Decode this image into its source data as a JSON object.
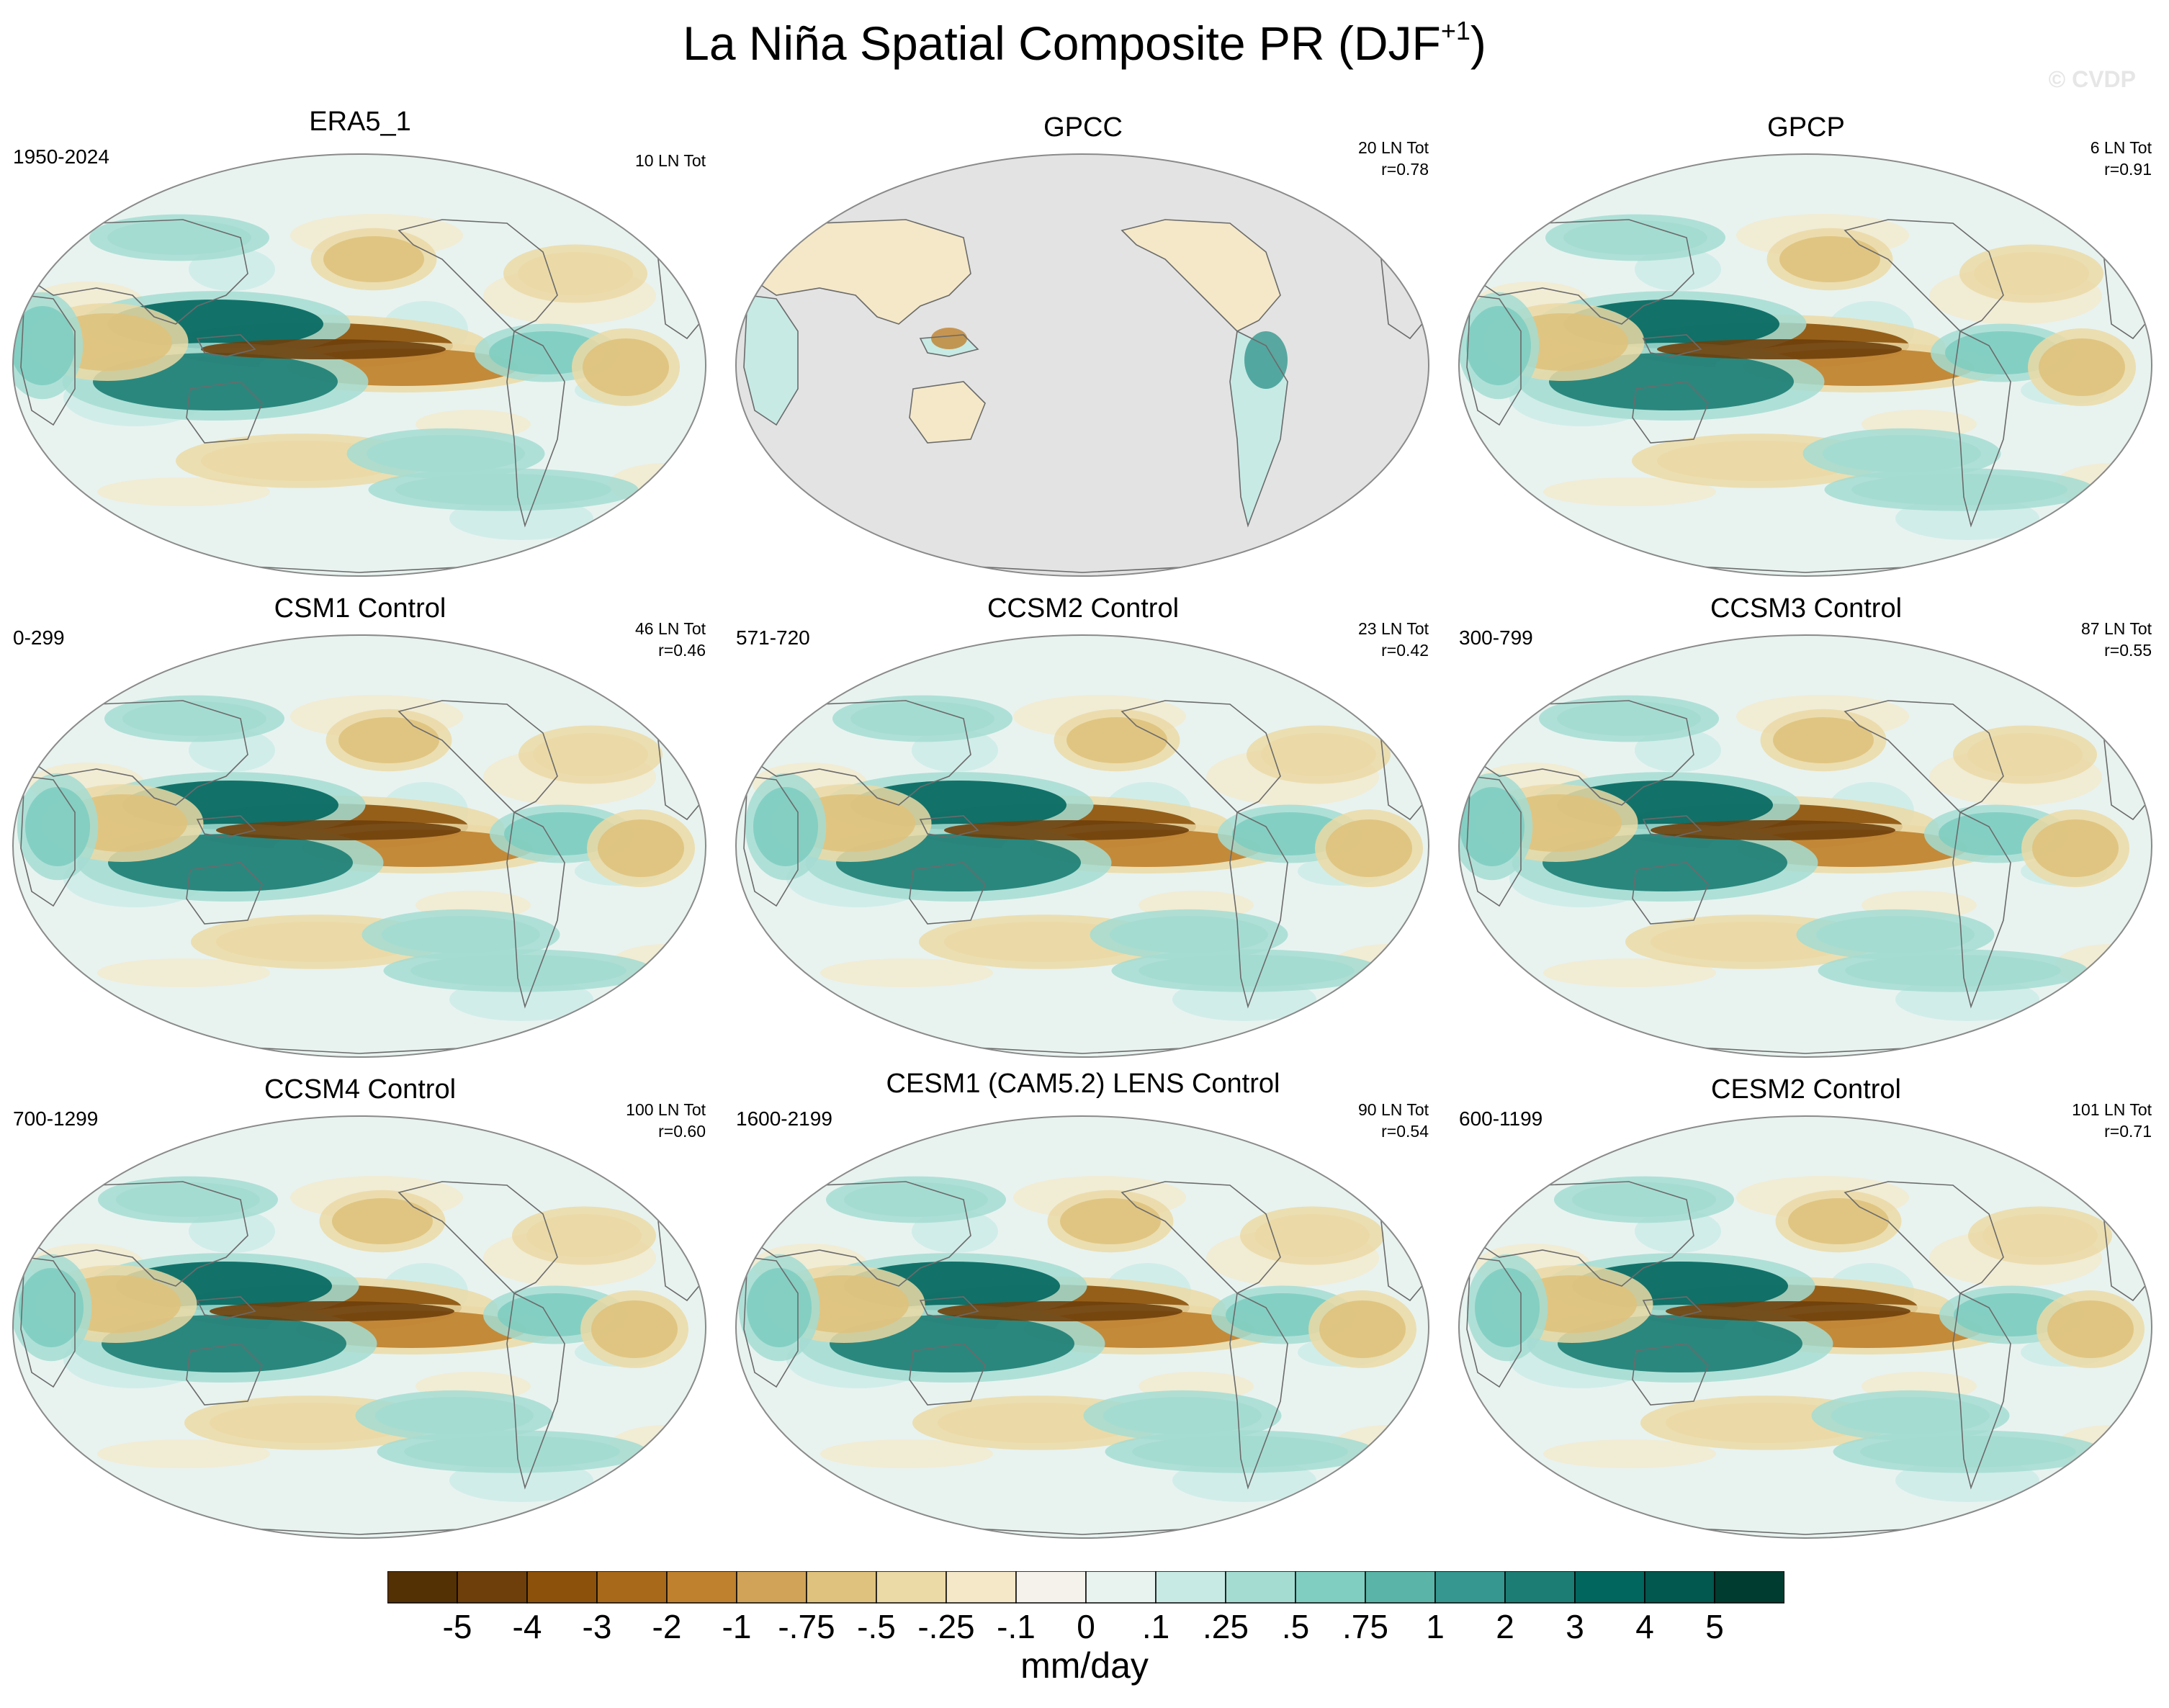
{
  "figure": {
    "title": "La Niña Spatial Composite PR (DJF",
    "title_superscript": "+1",
    "title_close": ")",
    "watermark": "© CVDP"
  },
  "chart_data": {
    "type": "heatmap",
    "projection": "Robinson, Pacific-centered global maps",
    "variable": "PR (precipitation) composite anomaly",
    "units": "mm/day",
    "panels": [
      {
        "name": "ERA5_1",
        "years": "1950-2024",
        "events": "10 LN Tot",
        "r": ""
      },
      {
        "name": "GPCC",
        "years": "",
        "events": "20 LN Tot",
        "r": "r=0.78"
      },
      {
        "name": "GPCP",
        "years": "",
        "events": "6 LN Tot",
        "r": "r=0.91"
      },
      {
        "name": "CSM1 Control",
        "years": "0-299",
        "events": "46 LN Tot",
        "r": "r=0.46"
      },
      {
        "name": "CCSM2 Control",
        "years": "571-720",
        "events": "23 LN Tot",
        "r": "r=0.42"
      },
      {
        "name": "CCSM3 Control",
        "years": "300-799",
        "events": "87 LN Tot",
        "r": "r=0.55"
      },
      {
        "name": "CCSM4 Control",
        "years": "700-1299",
        "events": "100 LN Tot",
        "r": "r=0.60"
      },
      {
        "name": "CESM1 (CAM5.2) LENS Control",
        "years": "1600-2199",
        "events": "90 LN Tot",
        "r": "r=0.54"
      },
      {
        "name": "CESM2 Control",
        "years": "600-1199",
        "events": "101 LN Tot",
        "r": "r=0.71"
      }
    ],
    "colorbar": {
      "levels": [
        "-5",
        "-4",
        "-3",
        "-2",
        "-1",
        "-.75",
        "-.5",
        "-.25",
        "-.1",
        "0",
        ".1",
        ".25",
        ".5",
        ".75",
        "1",
        "2",
        "3",
        "4",
        "5"
      ],
      "colors": [
        "#543005",
        "#6e3f0b",
        "#8c510a",
        "#a8691a",
        "#bf812d",
        "#d0a358",
        "#dfc27d",
        "#ebd9a6",
        "#f5e8c8",
        "#f5f2eb",
        "#e8f3f0",
        "#c7eae5",
        "#a4dcd2",
        "#80cdc1",
        "#5ab4a8",
        "#35978f",
        "#1c7d74",
        "#01665e",
        "#02574e",
        "#003c30"
      ],
      "label": "mm/day"
    }
  }
}
